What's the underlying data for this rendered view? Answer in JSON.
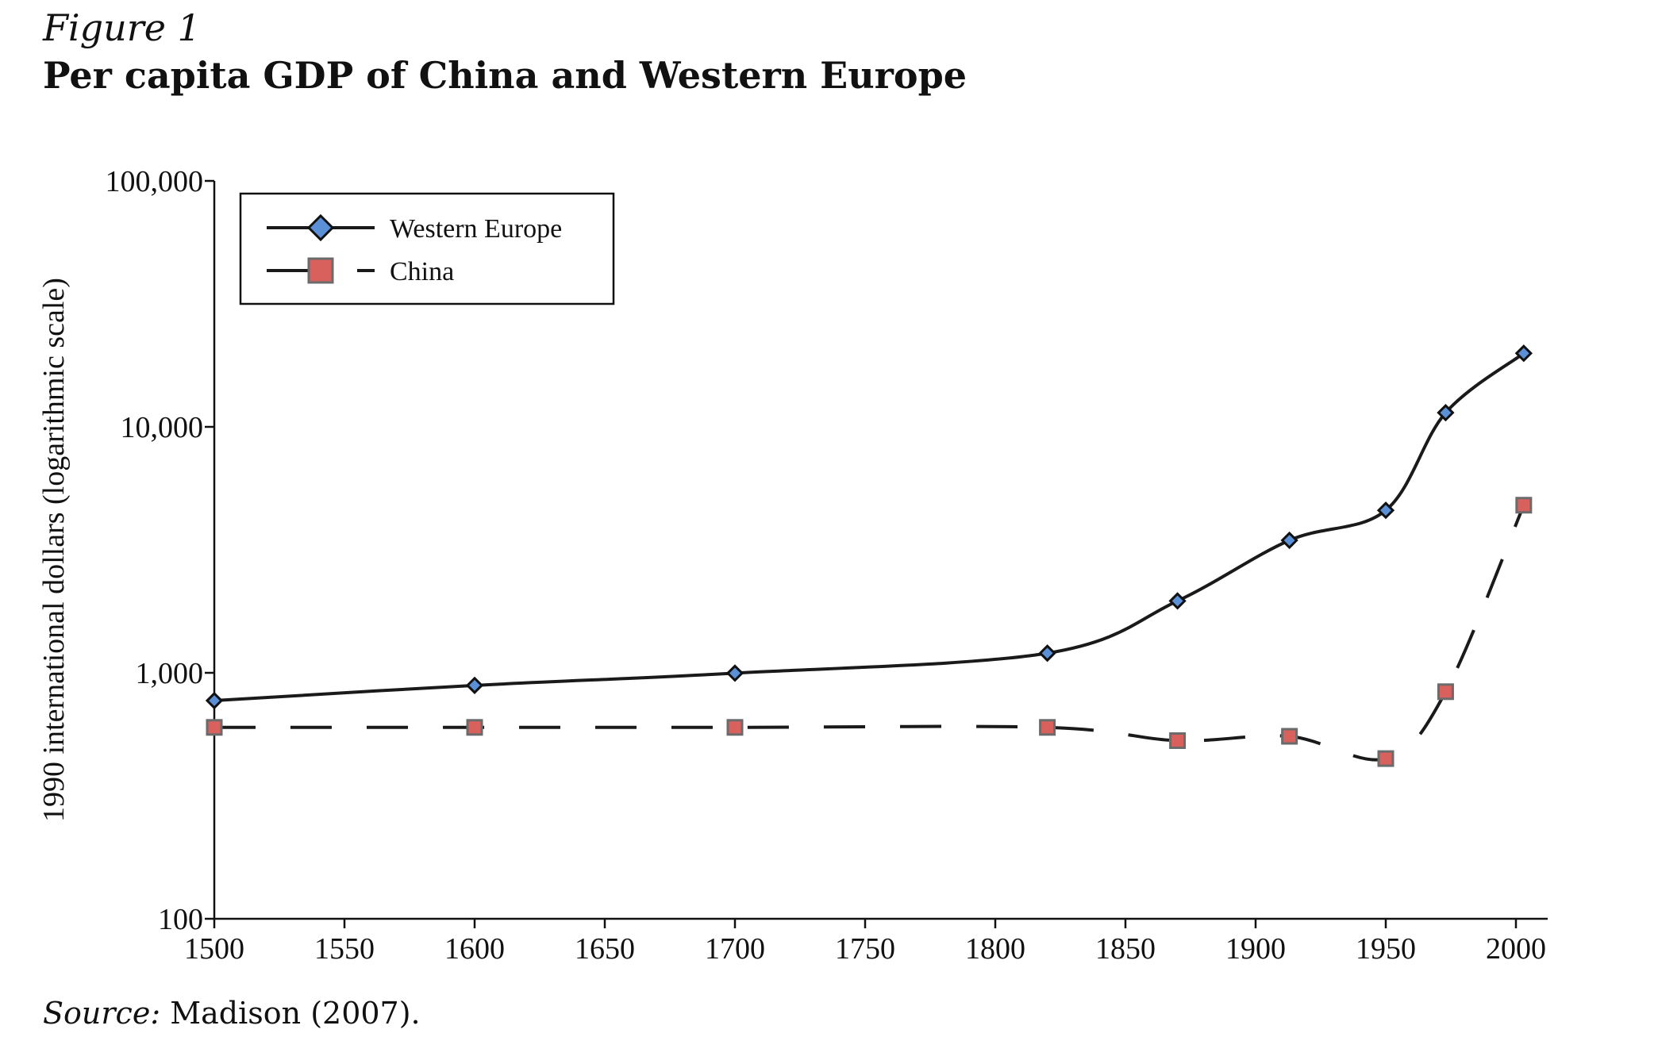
{
  "figure_label": "Figure 1",
  "source": {
    "label": "Source:",
    "text": "Madison (2007)."
  },
  "chart_data": {
    "type": "line",
    "title": "Per capita GDP of China and Western Europe",
    "xlabel": "",
    "ylabel": "1990 international dollars (logarithmic scale)",
    "yscale": "log",
    "xlim": [
      1500,
      2003
    ],
    "ylim": [
      100,
      100000
    ],
    "x_ticks": [
      1500,
      1550,
      1600,
      1650,
      1700,
      1750,
      1800,
      1850,
      1900,
      1950,
      2000
    ],
    "y_ticks": [
      100,
      1000,
      10000,
      100000
    ],
    "y_tick_labels": [
      "100",
      "1,000",
      "10,000",
      "100,000"
    ],
    "legend_position": "top-left",
    "grid": false,
    "series": [
      {
        "name": "Western Europe",
        "marker": "diamond",
        "line": "solid",
        "marker_color": "#5b8fd6",
        "x": [
          1500,
          1600,
          1700,
          1820,
          1870,
          1913,
          1950,
          1973,
          2003
        ],
        "values": [
          771,
          889,
          997,
          1202,
          1960,
          3457,
          4578,
          11417,
          19912
        ]
      },
      {
        "name": "China",
        "marker": "square",
        "line": "dashed",
        "marker_color": "#d9615d",
        "x": [
          1500,
          1600,
          1700,
          1820,
          1870,
          1913,
          1950,
          1973,
          2003
        ],
        "values": [
          600,
          600,
          600,
          600,
          530,
          552,
          448,
          838,
          4803
        ]
      }
    ]
  }
}
